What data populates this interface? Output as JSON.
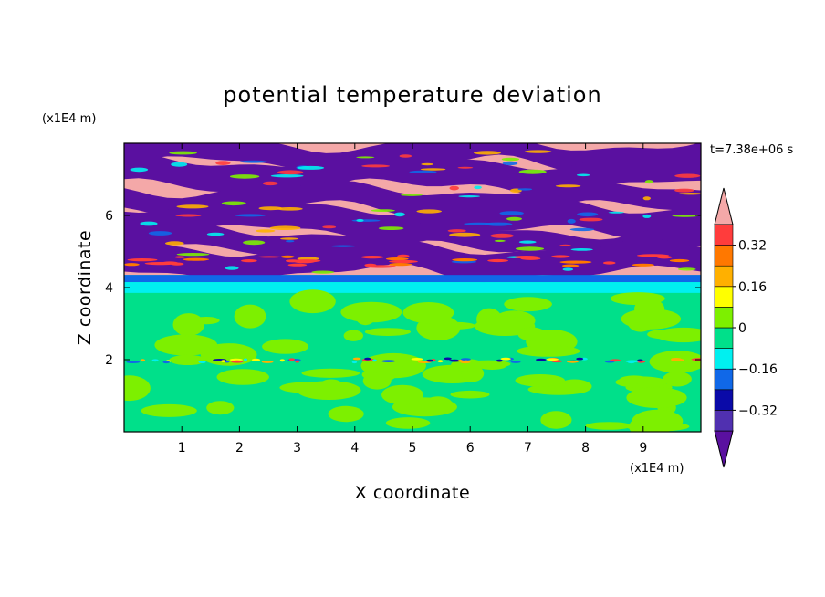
{
  "chart_data": {
    "type": "heatmap",
    "title": "potential temperature deviation",
    "xlabel": "X coordinate",
    "ylabel": "Z coordinate",
    "x_unit": "(x1E4 m)",
    "y_unit": "(x1E4 m)",
    "time_label": "t=7.38e+06 s",
    "xlim": [
      0,
      10
    ],
    "ylim": [
      0,
      8
    ],
    "x_ticks": [
      "1",
      "2",
      "3",
      "4",
      "5",
      "6",
      "7",
      "8",
      "9"
    ],
    "y_ticks": [
      "2",
      "4",
      "6"
    ],
    "colorbar": {
      "levels": [
        -0.48,
        -0.4,
        -0.32,
        -0.24,
        -0.16,
        -0.08,
        0,
        0.08,
        0.16,
        0.24,
        0.32,
        0.4,
        0.48
      ],
      "tick_labels": [
        "0.32",
        "0.16",
        "0",
        "−0.16",
        "−0.32"
      ],
      "tick_values": [
        0.32,
        0.16,
        0,
        -0.16,
        -0.32
      ],
      "colors_low_to_high": [
        "#5a10a0",
        "#5030b0",
        "#0a0aa8",
        "#1068e8",
        "#00f0f0",
        "#00e08a",
        "#7df000",
        "#ffff00",
        "#ffb000",
        "#ff7800",
        "#ff3c3c",
        "#f4a8a8"
      ]
    },
    "bands": [
      {
        "z_range": [
          0,
          1.95
        ],
        "pattern": "mixed",
        "values": [
          0.0,
          0.08
        ]
      },
      {
        "z_range": [
          1.95,
          2.05
        ],
        "pattern": "thin mixed layer",
        "values": [
          -0.32,
          0.32
        ]
      },
      {
        "z_range": [
          2.05,
          3.8
        ],
        "pattern": "mixed",
        "values": [
          0.0,
          0.08
        ]
      },
      {
        "z_range": [
          3.8,
          4.35
        ],
        "pattern": "transition",
        "values": [
          -0.16,
          -0.08
        ]
      },
      {
        "z_range": [
          4.35,
          8
        ],
        "pattern": "alternating",
        "values": [
          -0.48,
          0.48
        ]
      }
    ]
  }
}
